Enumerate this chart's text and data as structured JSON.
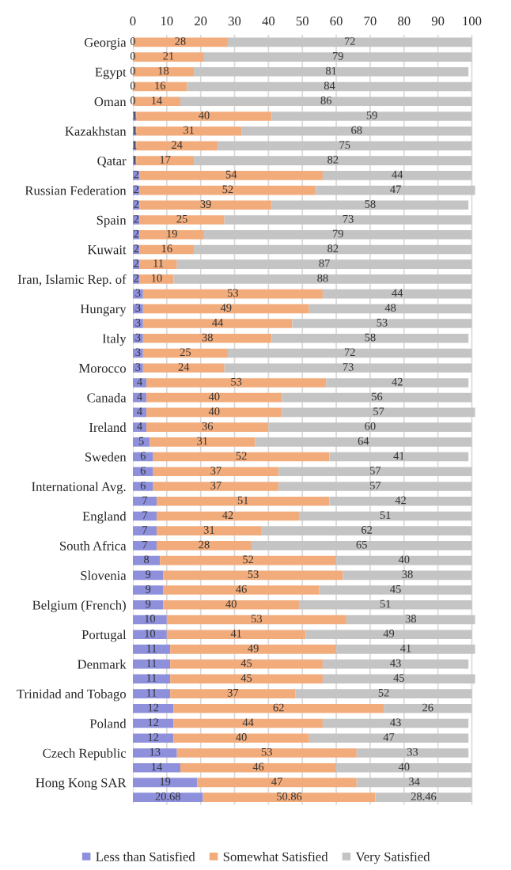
{
  "chart_data": {
    "type": "bar",
    "orientation": "horizontal",
    "stacked": true,
    "data_labels": true,
    "grid": "x",
    "legend": "bottom",
    "categories": [
      "Georgia",
      null,
      "Egypt",
      null,
      "Oman",
      null,
      "Kazakhstan",
      null,
      "Qatar",
      null,
      "Russian Federation",
      null,
      "Spain",
      null,
      "Kuwait",
      null,
      "Iran, Islamic Rep. of",
      null,
      "Hungary",
      null,
      "Italy",
      null,
      "Morocco",
      null,
      "Canada",
      null,
      "Ireland",
      null,
      "Sweden",
      null,
      "International Avg.",
      null,
      "England",
      null,
      "South Africa",
      null,
      "Slovenia",
      null,
      "Belgium (French)",
      null,
      "Portugal",
      null,
      "Denmark",
      null,
      "Trinidad and Tobago",
      null,
      "Poland",
      null,
      "Czech Republic",
      null,
      "Hong Kong SAR",
      null
    ],
    "xlim": [
      0,
      101
    ],
    "xticks": [
      0,
      10,
      20,
      30,
      40,
      50,
      60,
      70,
      80,
      90,
      100
    ],
    "series": [
      {
        "name": "Less than Satisfied",
        "color": "#8e90dc",
        "values": [
          0,
          0,
          0,
          0,
          0,
          1,
          1,
          1,
          1,
          2,
          2,
          2,
          2,
          2,
          2,
          2,
          2,
          3,
          3,
          3,
          3,
          3,
          3,
          4,
          4,
          4,
          4,
          5,
          6,
          6,
          6,
          7,
          7,
          7,
          7,
          8,
          9,
          9,
          9,
          10,
          10,
          11,
          11,
          11,
          11,
          12,
          12,
          12,
          13,
          14,
          19,
          20.68
        ]
      },
      {
        "name": "Somewhat Satisfied",
        "color": "#f2ac7c",
        "values": [
          28,
          21,
          18,
          16,
          14,
          40,
          31,
          24,
          17,
          54,
          52,
          39,
          25,
          19,
          16,
          11,
          10,
          53,
          49,
          44,
          38,
          25,
          24,
          53,
          40,
          40,
          36,
          31,
          52,
          37,
          37,
          51,
          42,
          31,
          28,
          52,
          53,
          46,
          40,
          53,
          41,
          49,
          45,
          45,
          37,
          62,
          44,
          40,
          53,
          46,
          47,
          50.86
        ]
      },
      {
        "name": "Very Satisfied",
        "color": "#c4c4c4",
        "values": [
          72,
          79,
          81,
          84,
          86,
          59,
          68,
          75,
          82,
          44,
          47,
          58,
          73,
          79,
          82,
          87,
          88,
          44,
          48,
          53,
          58,
          72,
          73,
          42,
          56,
          57,
          60,
          64,
          41,
          57,
          57,
          42,
          51,
          62,
          65,
          40,
          38,
          45,
          51,
          38,
          49,
          41,
          43,
          45,
          52,
          26,
          43,
          47,
          33,
          40,
          34,
          28.46
        ]
      }
    ]
  }
}
